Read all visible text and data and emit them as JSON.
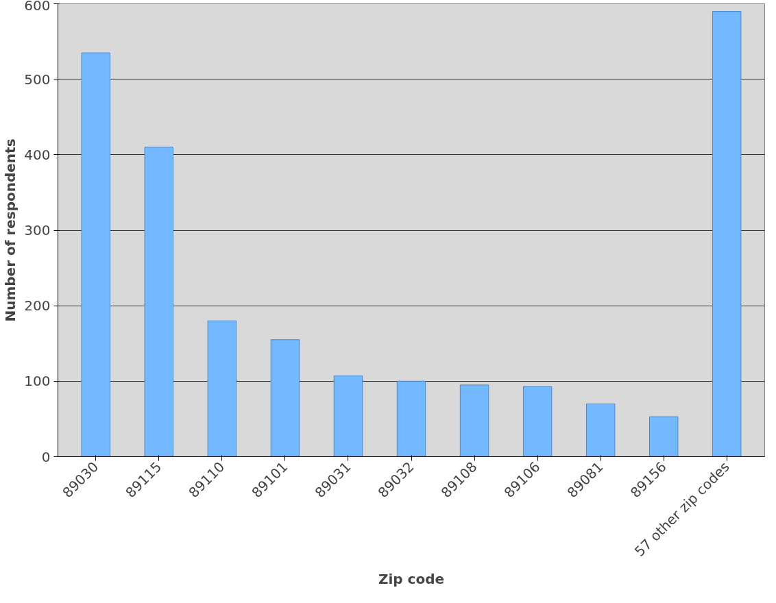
{
  "chart_data": {
    "type": "bar",
    "xlabel": "Zip code",
    "ylabel": "Number of respondents",
    "categories": [
      "89030",
      "89115",
      "89110",
      "89101",
      "89031",
      "89032",
      "89108",
      "89106",
      "89081",
      "89156",
      "57 other zip codes"
    ],
    "values": [
      535,
      410,
      180,
      155,
      107,
      100,
      95,
      93,
      70,
      53,
      590
    ],
    "color": "#74b9ff",
    "ylim": [
      0,
      600
    ],
    "yticks": [
      0,
      100,
      200,
      300,
      400,
      500,
      600
    ],
    "grid": "y"
  }
}
